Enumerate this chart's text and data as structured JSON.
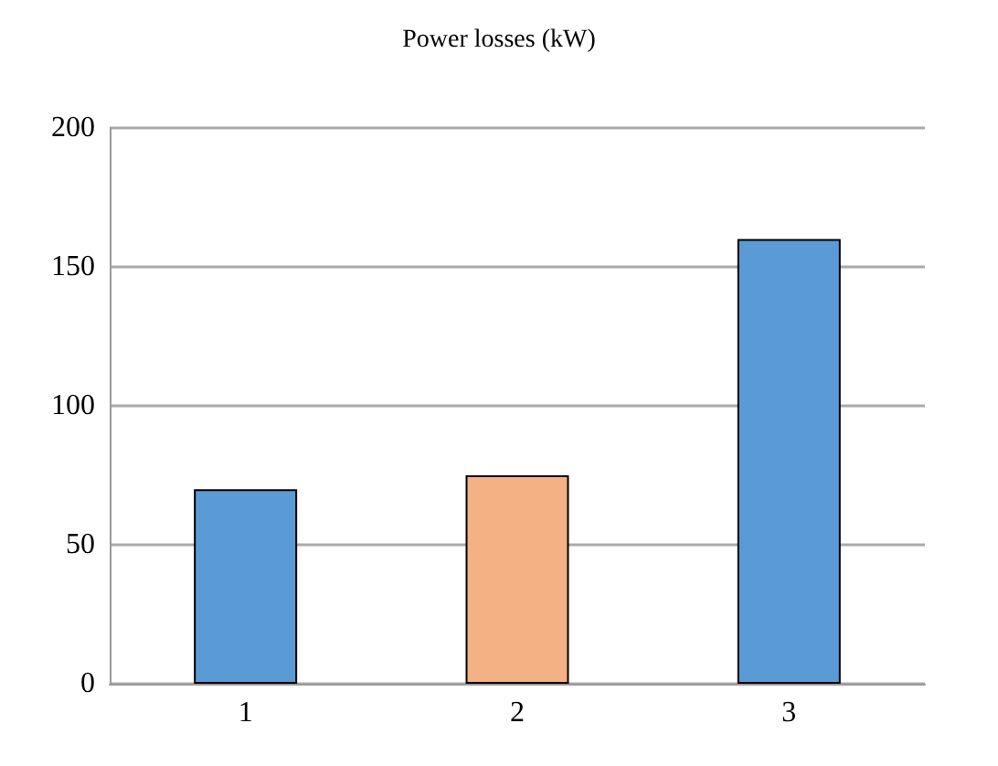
{
  "chart_data": {
    "type": "bar",
    "title": "Power losses (kW)",
    "categories": [
      "1",
      "2",
      "3"
    ],
    "values": [
      70,
      75,
      160
    ],
    "colors": [
      "#5b9bd5",
      "#f4b183",
      "#5b9bd5"
    ],
    "ylim": [
      0,
      200
    ],
    "yticks": [
      0,
      50,
      100,
      150,
      200
    ],
    "grid": "y"
  }
}
